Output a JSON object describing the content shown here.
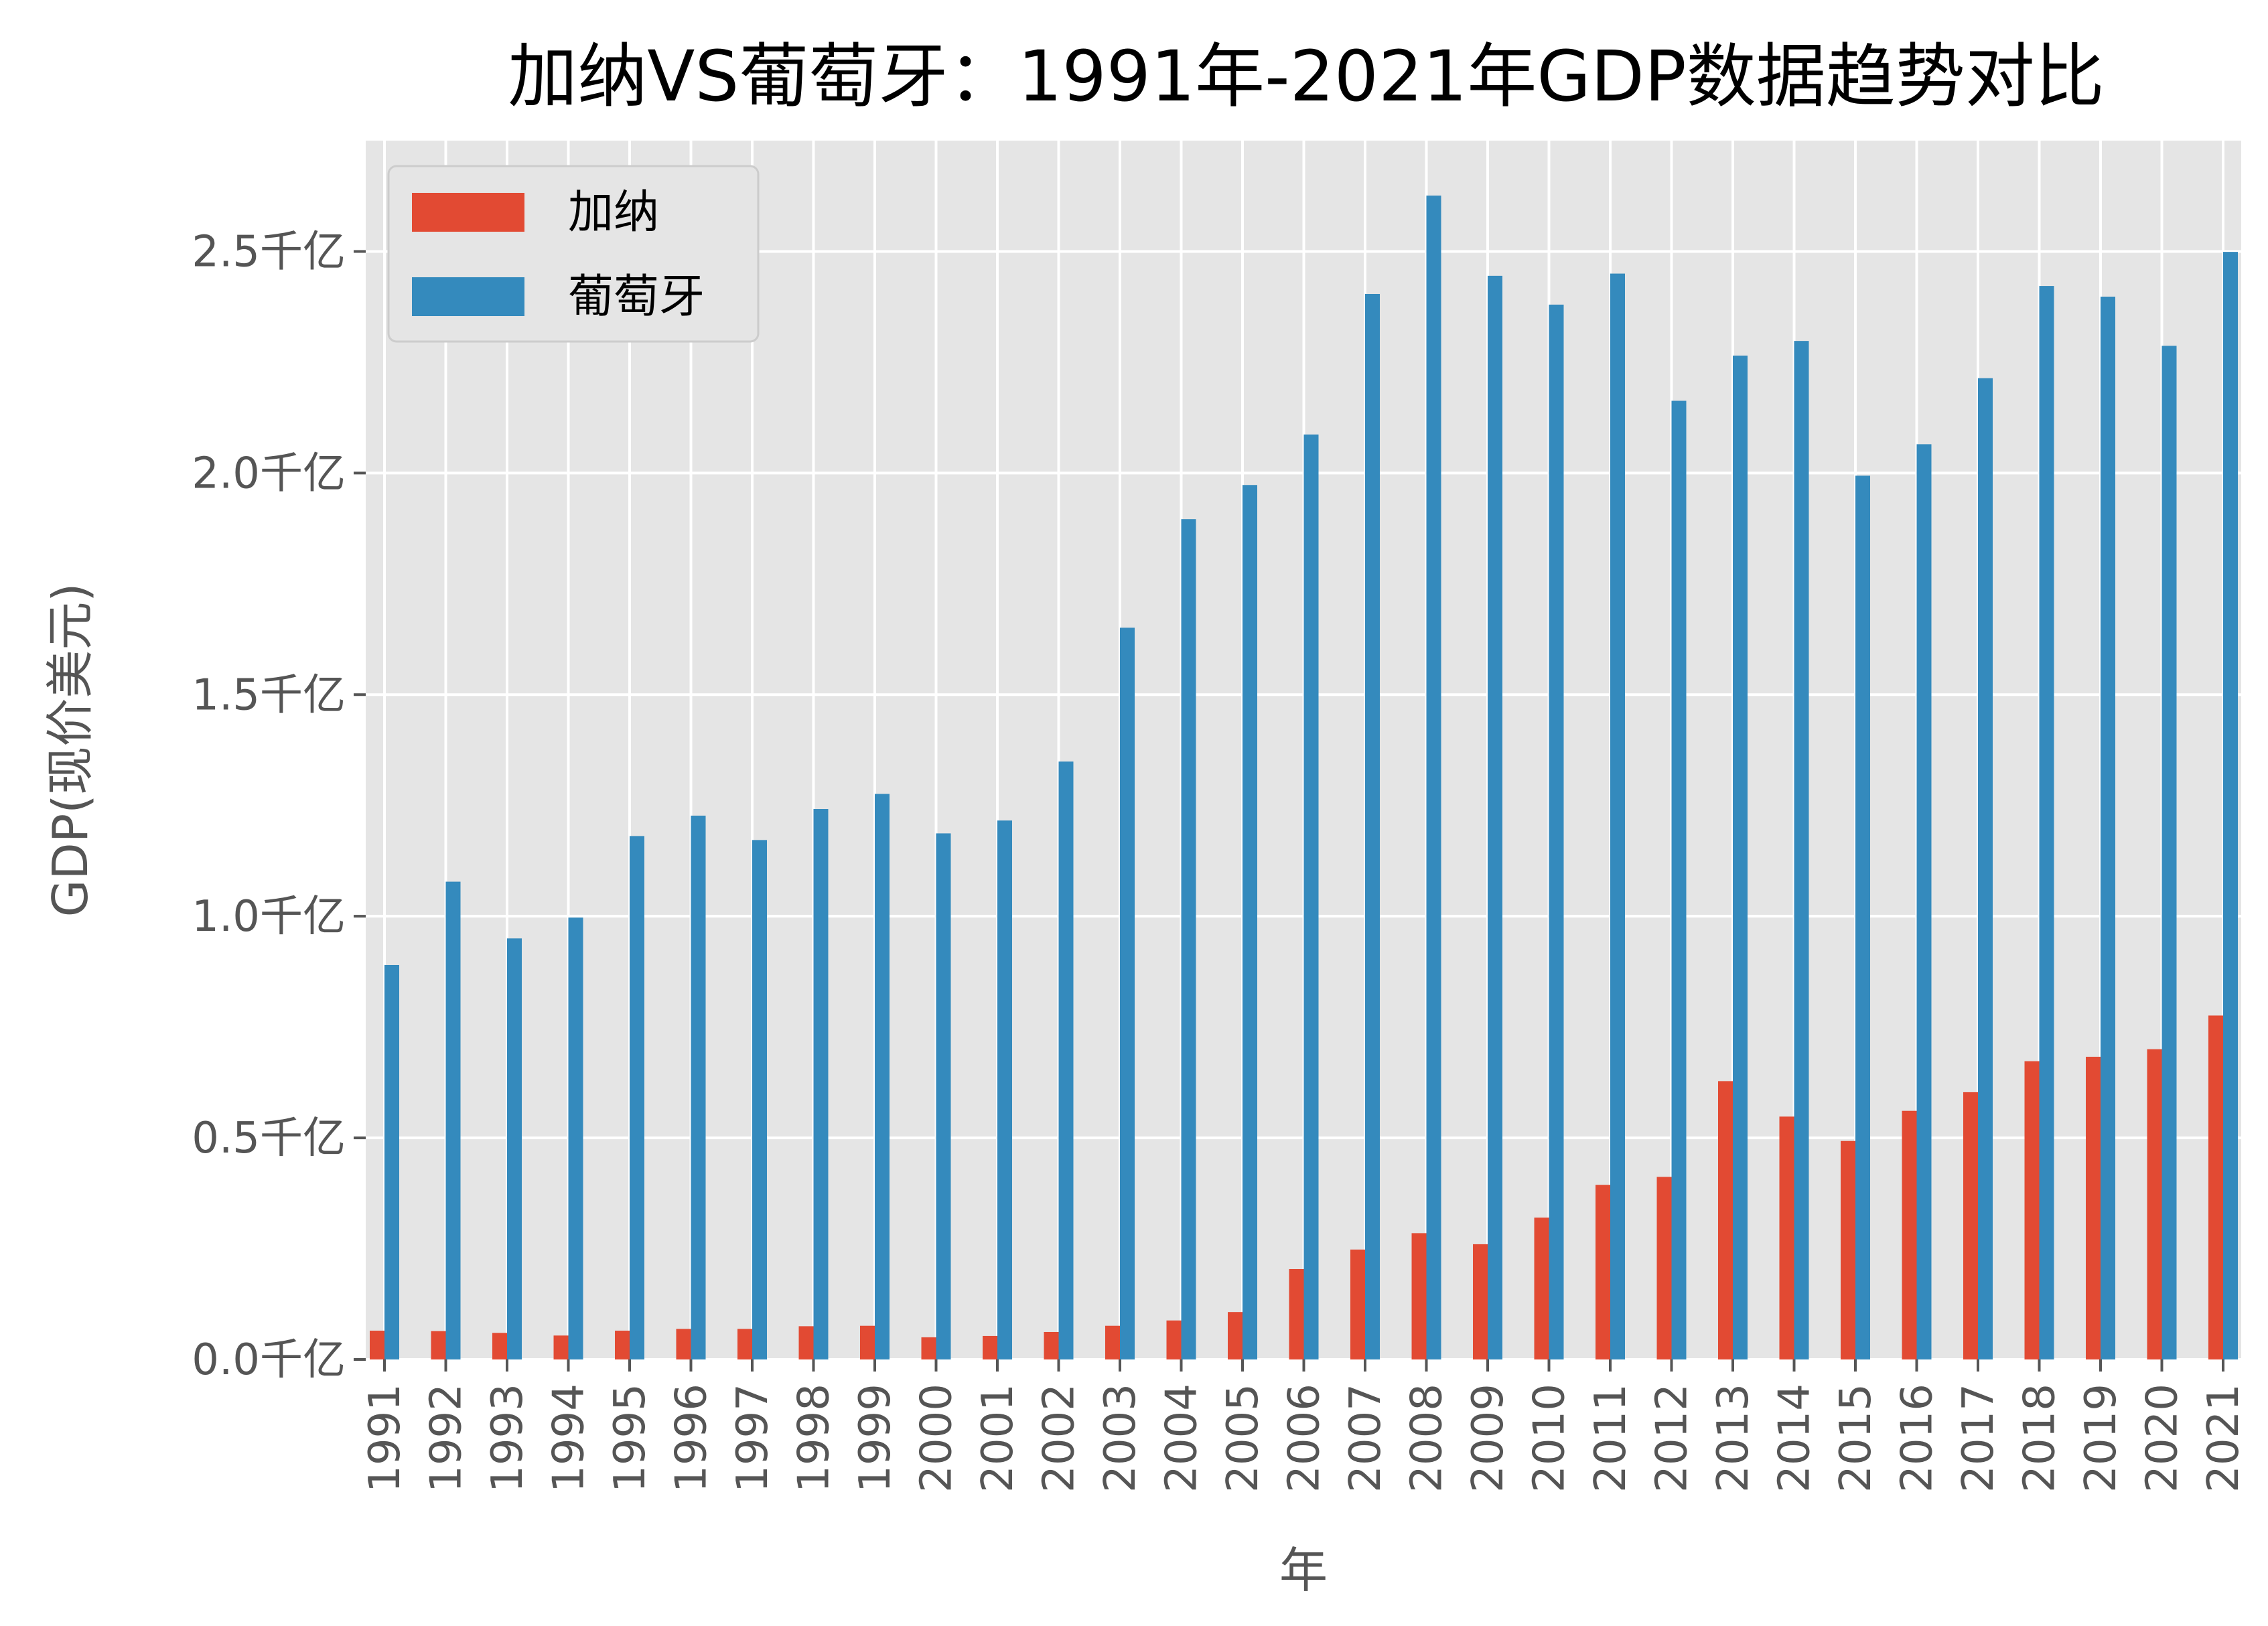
{
  "chart_data": {
    "type": "bar",
    "title": "加纳VS葡萄牙：1991年-2021年GDP数据趋势对比",
    "xlabel": "年",
    "ylabel": "GDP(现价美元)",
    "ylim": [
      0,
      2.75
    ],
    "y_tick_values": [
      0,
      0.5,
      1.0,
      1.5,
      2.0,
      2.5
    ],
    "y_tick_labels": [
      "0.0千亿",
      "0.5千亿",
      "1.0千亿",
      "1.5千亿",
      "2.0千亿",
      "2.5千亿"
    ],
    "grid": true,
    "legend_position": "top-left",
    "categories": [
      "1991",
      "1992",
      "1993",
      "1994",
      "1995",
      "1996",
      "1997",
      "1998",
      "1999",
      "2000",
      "2001",
      "2002",
      "2003",
      "2004",
      "2005",
      "2006",
      "2007",
      "2008",
      "2009",
      "2010",
      "2011",
      "2012",
      "2013",
      "2014",
      "2015",
      "2016",
      "2017",
      "2018",
      "2019",
      "2020",
      "2021"
    ],
    "series": [
      {
        "name": "加纳",
        "color": "#E24A33",
        "values": [
          0.065,
          0.064,
          0.06,
          0.054,
          0.065,
          0.069,
          0.069,
          0.075,
          0.076,
          0.05,
          0.053,
          0.062,
          0.076,
          0.088,
          0.107,
          0.204,
          0.248,
          0.285,
          0.26,
          0.32,
          0.394,
          0.412,
          0.628,
          0.548,
          0.493,
          0.561,
          0.603,
          0.673,
          0.683,
          0.7,
          0.776
        ]
      },
      {
        "name": "葡萄牙",
        "color": "#348ABD",
        "values": [
          0.89,
          1.078,
          0.95,
          0.997,
          1.181,
          1.227,
          1.172,
          1.242,
          1.276,
          1.187,
          1.216,
          1.349,
          1.651,
          1.896,
          1.973,
          2.087,
          2.404,
          2.626,
          2.445,
          2.38,
          2.45,
          2.163,
          2.265,
          2.298,
          1.994,
          2.065,
          2.214,
          2.422,
          2.398,
          2.287,
          2.499
        ]
      }
    ]
  }
}
